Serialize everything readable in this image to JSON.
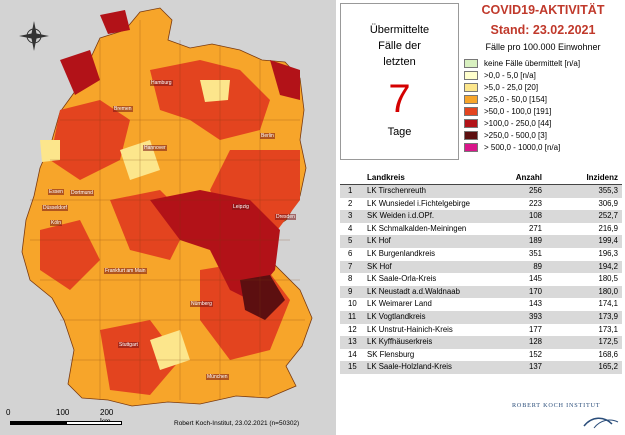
{
  "header": {
    "title_line1": "COVID19-AKTIVITÄT",
    "title_line2": "Stand: 23.02.2021",
    "subtitle": "Fälle pro 100.000 Einwohner"
  },
  "info_box": {
    "line1": "Übermittelte",
    "line2": "Fälle der",
    "line3": "letzten",
    "number": "7",
    "line4": "Tage"
  },
  "legend": [
    {
      "label": "keine Fälle übermittelt [n/a]",
      "color": "#d8f0c0"
    },
    {
      "label": ">0,0 - 5,0 [n/a]",
      "color": "#ffffcc"
    },
    {
      "label": ">5,0 - 25,0 [20]",
      "color": "#fce68c"
    },
    {
      "label": ">25,0 - 50,0 [154]",
      "color": "#f7a52a"
    },
    {
      "label": ">50,0 - 100,0 [191]",
      "color": "#e3441f"
    },
    {
      "label": ">100,0 - 250,0 [44]",
      "color": "#b21218"
    },
    {
      "label": ">250,0 - 500,0 [3]",
      "color": "#5c0f10"
    },
    {
      "label": "> 500,0 - 1000,0 [n/a]",
      "color": "#d9168a"
    }
  ],
  "table": {
    "headers": {
      "name": "Landkreis",
      "count": "Anzahl",
      "incidence": "Inzidenz"
    },
    "rows": [
      {
        "rank": "1",
        "name": "LK Tirschenreuth",
        "count": "256",
        "incidence": "355,3"
      },
      {
        "rank": "2",
        "name": "LK Wunsiedel i.Fichtelgebirge",
        "count": "223",
        "incidence": "306,9"
      },
      {
        "rank": "3",
        "name": "SK Weiden i.d.OPf.",
        "count": "108",
        "incidence": "252,7"
      },
      {
        "rank": "4",
        "name": "LK Schmalkalden-Meiningen",
        "count": "271",
        "incidence": "216,9"
      },
      {
        "rank": "5",
        "name": "LK Hof",
        "count": "189",
        "incidence": "199,4"
      },
      {
        "rank": "6",
        "name": "LK Burgenlandkreis",
        "count": "351",
        "incidence": "196,3"
      },
      {
        "rank": "7",
        "name": "SK Hof",
        "count": "89",
        "incidence": "194,2"
      },
      {
        "rank": "8",
        "name": "LK Saale-Orla-Kreis",
        "count": "145",
        "incidence": "180,5"
      },
      {
        "rank": "9",
        "name": "LK Neustadt a.d.Waldnaab",
        "count": "170",
        "incidence": "180,0"
      },
      {
        "rank": "10",
        "name": "LK Weimarer Land",
        "count": "143",
        "incidence": "174,1"
      },
      {
        "rank": "11",
        "name": "LK Vogtlandkreis",
        "count": "393",
        "incidence": "173,9"
      },
      {
        "rank": "12",
        "name": "LK Unstrut-Hainich-Kreis",
        "count": "177",
        "incidence": "173,1"
      },
      {
        "rank": "13",
        "name": "LK Kyffhäuserkreis",
        "count": "128",
        "incidence": "172,5"
      },
      {
        "rank": "14",
        "name": "SK Flensburg",
        "count": "152",
        "incidence": "168,6"
      },
      {
        "rank": "15",
        "name": "LK Saale-Holzland-Kreis",
        "count": "137",
        "incidence": "165,2"
      }
    ]
  },
  "map": {
    "cities": [
      "Hamburg",
      "Bremen",
      "Berlin",
      "Hannover",
      "Essen",
      "Dortmund",
      "Düsseldorf",
      "Köln",
      "Leipzig",
      "Dresden",
      "Frankfurt am Main",
      "Nürnberg",
      "Stuttgart",
      "München"
    ],
    "scale": {
      "zero": "0",
      "mid": "100",
      "end": "200 km"
    },
    "credit": "Robert Koch-Institut, 23.02.2021 (n=50302)",
    "compass_icon": "compass-rose-icon"
  },
  "branding": {
    "org": "ROBERT KOCH INSTITUT",
    "logo_icon": "rki-logo-icon"
  }
}
